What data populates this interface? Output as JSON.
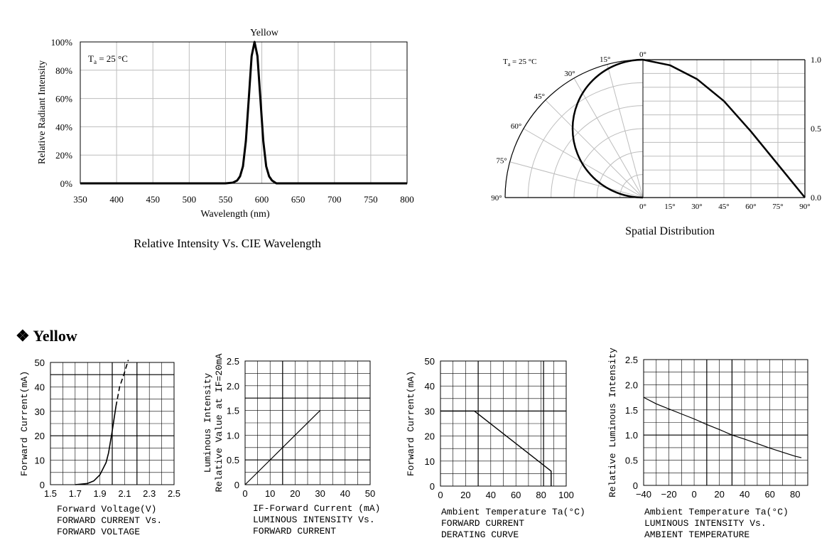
{
  "section": {
    "bullet": "❖",
    "title": "Yellow"
  },
  "spectrum": {
    "title": "Relative Intensity Vs. CIE Wavelength",
    "top_label": "Yellow",
    "ta_label": "T",
    "ta_sub": "a",
    "ta_value": " = 25 °C",
    "chart_data": {
      "type": "line",
      "xlabel": "Wavelength (nm)",
      "ylabel": "Relative Radiant Intensity",
      "xlim": [
        350,
        800
      ],
      "ylim": [
        0,
        100
      ],
      "x_ticks": [
        "350",
        "400",
        "450",
        "500",
        "550",
        "600",
        "650",
        "700",
        "750",
        "800"
      ],
      "y_ticks": [
        "0%",
        "20%",
        "40%",
        "60%",
        "80%",
        "100%"
      ],
      "series": [
        {
          "x": [
            350,
            550,
            560,
            566,
            570,
            574,
            578,
            582,
            586,
            590,
            594,
            598,
            602,
            606,
            610,
            614,
            620,
            800
          ],
          "y": [
            0,
            0,
            0.5,
            2,
            5,
            12,
            30,
            60,
            90,
            100,
            90,
            60,
            30,
            12,
            5,
            2,
            0,
            0
          ]
        }
      ]
    }
  },
  "spatial": {
    "title": "Spatial Distribution",
    "ta_label": "T",
    "ta_sub": "a",
    "ta_value": " = 25 °C",
    "angle_labels": [
      "0°",
      "15°",
      "30°",
      "45°",
      "60°",
      "75°",
      "90°"
    ],
    "bottom_labels": [
      "0°",
      "15°",
      "30°",
      "45°",
      "60°",
      "75°",
      "90°"
    ],
    "right_labels": [
      "1.0",
      "0.5",
      "0.0"
    ],
    "chart_data": {
      "type": "line",
      "xlabel": "",
      "ylabel": "",
      "xlim": [
        0,
        90
      ],
      "ylim": [
        0,
        1
      ],
      "series": [
        {
          "x": [
            0,
            15,
            30,
            45,
            60,
            75,
            90
          ],
          "y": [
            1.0,
            0.96,
            0.86,
            0.7,
            0.48,
            0.24,
            0.0
          ]
        }
      ]
    }
  },
  "iv": {
    "caption": [
      "Forward Voltage(V)",
      "FORWARD CURRENT Vs.",
      "FORWARD VOLTAGE"
    ],
    "chart_data": {
      "type": "line",
      "xlabel": "Forward Voltage(V)",
      "ylabel": "Forward Current(mA)",
      "xlim": [
        1.5,
        2.5
      ],
      "ylim": [
        0,
        50
      ],
      "x_ticks": [
        "1.5",
        "1.7",
        "1.9",
        "2.1",
        "2.3",
        "2.5"
      ],
      "y_ticks": [
        "0",
        "10",
        "20",
        "30",
        "40",
        "50"
      ],
      "series": [
        {
          "x": [
            1.7,
            1.8,
            1.85,
            1.9,
            1.95,
            1.97,
            2.0,
            2.03
          ],
          "y": [
            0,
            0.5,
            1.5,
            4,
            9,
            13,
            22,
            32
          ]
        },
        {
          "x": [
            2.03,
            2.06,
            2.1,
            2.13
          ],
          "y": [
            32,
            40,
            46,
            51
          ]
        }
      ]
    }
  },
  "lum": {
    "caption": [
      "IF-Forward Current (mA)",
      "LUMINOUS INTENSITY Vs.",
      "FORWARD CURRENT"
    ],
    "chart_data": {
      "type": "line",
      "xlabel": "IF-Forward Current (mA)",
      "ylabel": "Luminous Intensity Relative Value at IF=20mA",
      "xlim": [
        0,
        50
      ],
      "ylim": [
        0,
        2.5
      ],
      "x_ticks": [
        "0",
        "10",
        "20",
        "30",
        "40",
        "50"
      ],
      "y_ticks": [
        "0",
        "0.5",
        "1.0",
        "1.5",
        "2.0",
        "2.5"
      ],
      "series": [
        {
          "x": [
            0,
            30
          ],
          "y": [
            0,
            1.5
          ]
        }
      ]
    }
  },
  "derating": {
    "caption": [
      "Ambient Temperature Ta(°C)",
      "FORWARD CURRENT",
      "DERATING CURVE"
    ],
    "chart_data": {
      "type": "line",
      "xlabel": "Ambient Temperature Ta(°C)",
      "ylabel": "Forward Current(mA)",
      "xlim": [
        0,
        100
      ],
      "ylim": [
        0,
        50
      ],
      "x_ticks": [
        "0",
        "20",
        "40",
        "60",
        "80",
        "100"
      ],
      "y_ticks": [
        "0",
        "10",
        "20",
        "30",
        "40",
        "50"
      ],
      "series": [
        {
          "x": [
            0,
            27,
            88,
            88
          ],
          "y": [
            30,
            30,
            6,
            0
          ]
        }
      ]
    }
  },
  "temp": {
    "caption": [
      "Ambient Temperature Ta(°C)",
      "LUMINOUS INTENSITY Vs.",
      "AMBIENT TEMPERATURE"
    ],
    "chart_data": {
      "type": "line",
      "xlabel": "Ambient Temperature Ta(°C)",
      "ylabel": "Relative Luminous Intensity",
      "xlim": [
        -40,
        90
      ],
      "ylim": [
        0,
        2.5
      ],
      "x_ticks": [
        "−40",
        "−20",
        "0",
        "20",
        "40",
        "60",
        "80"
      ],
      "y_ticks": [
        "0",
        "0.5",
        "1.0",
        "1.5",
        "2.0",
        "2.5"
      ],
      "series": [
        {
          "x": [
            -40,
            -30,
            -20,
            -10,
            0,
            10,
            20,
            30,
            40,
            50,
            60,
            70,
            80,
            85
          ],
          "y": [
            1.75,
            1.62,
            1.52,
            1.42,
            1.32,
            1.21,
            1.11,
            1.0,
            0.92,
            0.83,
            0.74,
            0.66,
            0.58,
            0.55
          ]
        }
      ]
    }
  }
}
